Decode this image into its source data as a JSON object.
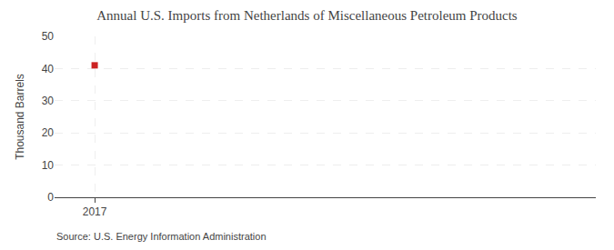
{
  "chart_data": {
    "type": "scatter",
    "title": "Annual U.S. Imports from Netherlands of Miscellaneous Petroleum Products",
    "y_label": "Thousand Barrels",
    "source": "Source: U.S. Energy Information Administration",
    "x": [
      2017
    ],
    "values": [
      41
    ],
    "color": "#cc2222",
    "marker": "square",
    "xlim": [
      2016.6,
      2022.0
    ],
    "xticks": [
      2017
    ],
    "ylim": [
      0,
      50
    ],
    "yticks": [
      0,
      10,
      20,
      30,
      40,
      50
    ],
    "grid": true
  }
}
